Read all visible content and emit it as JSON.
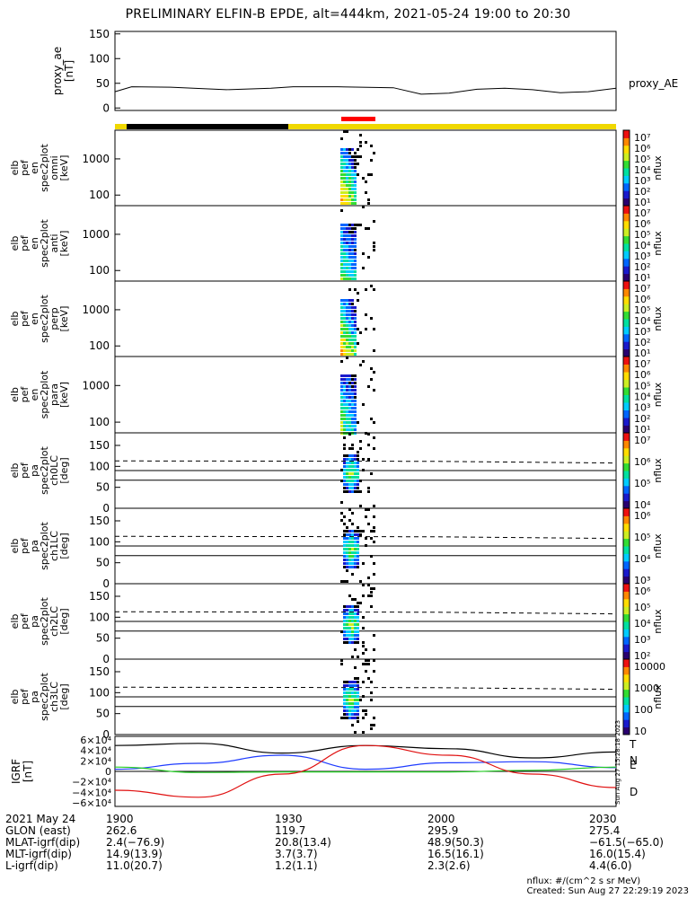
{
  "title": "PRELIMINARY ELFIN-B EPDE, alt=444km, 2021-05-24 19:00 to 20:30",
  "ae_panel": {
    "ylabel_lines": [
      "proxy_ae",
      "[nT]"
    ],
    "yticks": [
      "150",
      "100",
      "50",
      "0"
    ],
    "series_label": "proxy_AE",
    "ylim": [
      -5,
      155
    ]
  },
  "spec_panels": [
    {
      "ylabel_lines": [
        "elb",
        "pef",
        "en",
        "spec2plot",
        "omni",
        "[keV]"
      ],
      "yticks": [
        "1000",
        "100"
      ],
      "cbar_ticks": [
        "10⁷",
        "10⁶",
        "10⁵",
        "10⁴",
        "10³",
        "10²",
        "10¹"
      ],
      "cbar_label": "nflux"
    },
    {
      "ylabel_lines": [
        "elb",
        "pef",
        "en",
        "spec2plot",
        "anti",
        "[keV]"
      ],
      "yticks": [
        "1000",
        "100"
      ],
      "cbar_ticks": [
        "10⁷",
        "10⁶",
        "10⁵",
        "10⁴",
        "10³",
        "10²",
        "10¹"
      ],
      "cbar_label": "nflux"
    },
    {
      "ylabel_lines": [
        "elb",
        "pef",
        "en",
        "spec2plot",
        "perp",
        "[keV]"
      ],
      "yticks": [
        "1000",
        "100"
      ],
      "cbar_ticks": [
        "10⁷",
        "10⁶",
        "10⁵",
        "10⁴",
        "10³",
        "10²",
        "10¹"
      ],
      "cbar_label": "nflux"
    },
    {
      "ylabel_lines": [
        "elb",
        "pef",
        "en",
        "spec2plot",
        "para",
        "[keV]"
      ],
      "yticks": [
        "1000",
        "100"
      ],
      "cbar_ticks": [
        "10⁷",
        "10⁶",
        "10⁵",
        "10⁴",
        "10³",
        "10²",
        "10¹"
      ],
      "cbar_label": "nflux"
    },
    {
      "ylabel_lines": [
        "elb",
        "pef",
        "pa",
        "spec2plot",
        "ch0LC",
        "[deg]"
      ],
      "yticks": [
        "150",
        "100",
        "50",
        "0"
      ],
      "cbar_ticks": [
        "10⁷",
        "10⁶",
        "10⁵",
        "10⁴"
      ],
      "cbar_label": "nflux"
    },
    {
      "ylabel_lines": [
        "elb",
        "pef",
        "pa",
        "spec2plot",
        "ch1LC",
        "[deg]"
      ],
      "yticks": [
        "150",
        "100",
        "50",
        "0"
      ],
      "cbar_ticks": [
        "10⁶",
        "10⁵",
        "10⁴",
        "10³"
      ],
      "cbar_label": "nflux"
    },
    {
      "ylabel_lines": [
        "elb",
        "pef",
        "pa",
        "spec2plot",
        "ch2LC",
        "[deg]"
      ],
      "yticks": [
        "150",
        "100",
        "50",
        "0"
      ],
      "cbar_ticks": [
        "10⁶",
        "10⁵",
        "10⁴",
        "10³",
        "10²"
      ],
      "cbar_label": "nflux"
    },
    {
      "ylabel_lines": [
        "elb",
        "pef",
        "pa",
        "spec2plot",
        "ch3LC",
        "[deg]"
      ],
      "yticks": [
        "150",
        "100",
        "50",
        "0"
      ],
      "cbar_ticks": [
        "10000",
        "1000",
        "100",
        "10"
      ],
      "cbar_label": "nflux"
    }
  ],
  "igrf_panel": {
    "ylabel_lines": [
      "IGRF",
      "[nT]"
    ],
    "yticks": [
      "6×10⁴",
      "4×10⁴",
      "2×10⁴",
      "0",
      "−2×10⁴",
      "−4×10⁴",
      "−6×10⁴"
    ],
    "legend": [
      {
        "name": "T",
        "color": "#000000"
      },
      {
        "name": "N",
        "color": "#1f3cff"
      },
      {
        "name": "E",
        "color": "#22cc22"
      },
      {
        "name": "D",
        "color": "#e01010"
      }
    ],
    "side_stamp": "Sun Aug 27 15:28:18 2023"
  },
  "footer": {
    "rows": [
      [
        "2021 May 24",
        "1900",
        "1930",
        "2000",
        "2030"
      ],
      [
        "GLON (east)",
        "262.6",
        "119.7",
        "295.9",
        "275.4"
      ],
      [
        "MLAT-igrf(dip)",
        "2.4(−76.9)",
        "20.8(13.4)",
        "48.9(50.3)",
        "−61.5(−65.0)"
      ],
      [
        "MLT-igrf(dip)",
        "14.9(13.9)",
        "3.7(3.7)",
        "16.5(16.1)",
        "16.0(15.4)"
      ],
      [
        "L-igrf(dip)",
        "11.0(20.7)",
        "1.2(1.1)",
        "2.3(2.6)",
        "4.4(6.0)"
      ]
    ],
    "units_note": "nflux: #/(cm^2 s sr MeV)",
    "created": "Created: Sun Aug 27 22:29:19 2023"
  },
  "colors": {
    "science_bar": "#f0d800",
    "science_bar_dark": "#000000",
    "science_bar_red": "#ff0000"
  },
  "chart_data": [
    {
      "type": "line",
      "title": "PRELIMINARY ELFIN-B EPDE, alt=444km, 2021-05-24 19:00 to 20:30",
      "ylabel": "proxy_ae [nT]",
      "x_unit": "minutes after 19:00",
      "x": [
        0,
        3,
        10,
        20,
        28,
        32,
        40,
        50,
        55,
        60,
        65,
        70,
        75,
        80,
        85,
        90
      ],
      "series": [
        {
          "name": "proxy_AE",
          "values": [
            33,
            43,
            42,
            37,
            40,
            43,
            43,
            41,
            28,
            30,
            38,
            40,
            37,
            31,
            33,
            40
          ]
        }
      ],
      "ylim": [
        -5,
        155
      ]
    },
    {
      "type": "heatmap",
      "ylabel": "elb pef en spec2plot omni [keV]",
      "x_range": [
        "19:38",
        "19:41"
      ],
      "ylim_log": [
        50,
        7000
      ],
      "color_range_log": [
        10,
        10000000
      ],
      "color_label": "nflux"
    },
    {
      "type": "line",
      "ylabel": "IGRF [nT]",
      "x_unit": "minutes after 19:00",
      "x": [
        0,
        15,
        30,
        45,
        60,
        75,
        90
      ],
      "series": [
        {
          "name": "T",
          "values": [
            48000,
            52000,
            34000,
            48000,
            42000,
            25000,
            36000
          ]
        },
        {
          "name": "N",
          "values": [
            4000,
            15000,
            30000,
            4000,
            16000,
            18000,
            7000
          ]
        },
        {
          "name": "E",
          "values": [
            8000,
            -2000,
            -1000,
            -1000,
            -1000,
            2000,
            8000
          ]
        },
        {
          "name": "D",
          "values": [
            -35000,
            -48000,
            -5000,
            48000,
            30000,
            -5000,
            -30000
          ]
        }
      ],
      "ylim": [
        -65000,
        65000
      ]
    }
  ]
}
